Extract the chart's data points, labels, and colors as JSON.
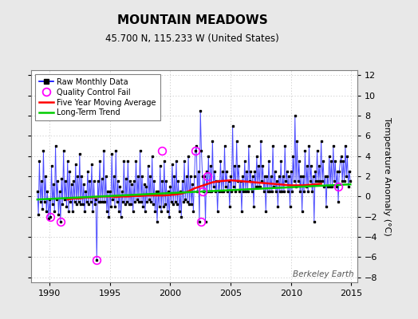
{
  "title": "MOUNTAIN MEADOWS",
  "subtitle": "45.700 N, 115.233 W (United States)",
  "ylabel": "Temperature Anomaly (°C)",
  "watermark": "Berkeley Earth",
  "xlim": [
    1988.5,
    2015.5
  ],
  "ylim": [
    -8.5,
    12.5
  ],
  "yticks": [
    -8,
    -6,
    -4,
    -2,
    0,
    2,
    4,
    6,
    8,
    10,
    12
  ],
  "xticks": [
    1990,
    1995,
    2000,
    2005,
    2010,
    2015
  ],
  "background_color": "#e8e8e8",
  "plot_bg_color": "#ffffff",
  "grid_color": "#c0c0c0",
  "raw_line_color": "#0000ff",
  "raw_marker_color": "#000000",
  "qc_fail_color": "#ff00ff",
  "moving_avg_color": "#ff0000",
  "trend_color": "#00cc00",
  "raw_data": {
    "times": [
      1989.0,
      1989.083,
      1989.167,
      1989.25,
      1989.333,
      1989.417,
      1989.5,
      1989.583,
      1989.667,
      1989.75,
      1989.833,
      1989.917,
      1990.0,
      1990.083,
      1990.167,
      1990.25,
      1990.333,
      1990.417,
      1990.5,
      1990.583,
      1990.667,
      1990.75,
      1990.833,
      1990.917,
      1991.0,
      1991.083,
      1991.167,
      1991.25,
      1991.333,
      1991.417,
      1991.5,
      1991.583,
      1991.667,
      1991.75,
      1991.833,
      1991.917,
      1992.0,
      1992.083,
      1992.167,
      1992.25,
      1992.333,
      1992.417,
      1992.5,
      1992.583,
      1992.667,
      1992.75,
      1992.833,
      1992.917,
      1993.0,
      1993.083,
      1993.167,
      1993.25,
      1993.333,
      1993.417,
      1993.5,
      1993.583,
      1993.667,
      1993.75,
      1993.833,
      1993.917,
      1994.0,
      1994.083,
      1994.167,
      1994.25,
      1994.333,
      1994.417,
      1994.5,
      1994.583,
      1994.667,
      1994.75,
      1994.833,
      1994.917,
      1995.0,
      1995.083,
      1995.167,
      1995.25,
      1995.333,
      1995.417,
      1995.5,
      1995.583,
      1995.667,
      1995.75,
      1995.833,
      1995.917,
      1996.0,
      1996.083,
      1996.167,
      1996.25,
      1996.333,
      1996.417,
      1996.5,
      1996.583,
      1996.667,
      1996.75,
      1996.833,
      1996.917,
      1997.0,
      1997.083,
      1997.167,
      1997.25,
      1997.333,
      1997.417,
      1997.5,
      1997.583,
      1997.667,
      1997.75,
      1997.833,
      1997.917,
      1998.0,
      1998.083,
      1998.167,
      1998.25,
      1998.333,
      1998.417,
      1998.5,
      1998.583,
      1998.667,
      1998.75,
      1998.833,
      1998.917,
      1999.0,
      1999.083,
      1999.167,
      1999.25,
      1999.333,
      1999.417,
      1999.5,
      1999.583,
      1999.667,
      1999.75,
      1999.833,
      1999.917,
      2000.0,
      2000.083,
      2000.167,
      2000.25,
      2000.333,
      2000.417,
      2000.5,
      2000.583,
      2000.667,
      2000.75,
      2000.833,
      2000.917,
      2001.0,
      2001.083,
      2001.167,
      2001.25,
      2001.333,
      2001.417,
      2001.5,
      2001.583,
      2001.667,
      2001.75,
      2001.833,
      2001.917,
      2002.0,
      2002.083,
      2002.167,
      2002.25,
      2002.333,
      2002.417,
      2002.5,
      2002.583,
      2002.667,
      2002.75,
      2002.833,
      2002.917,
      2003.0,
      2003.083,
      2003.167,
      2003.25,
      2003.333,
      2003.417,
      2003.5,
      2003.583,
      2003.667,
      2003.75,
      2003.833,
      2003.917,
      2004.0,
      2004.083,
      2004.167,
      2004.25,
      2004.333,
      2004.417,
      2004.5,
      2004.583,
      2004.667,
      2004.75,
      2004.833,
      2004.917,
      2005.0,
      2005.083,
      2005.167,
      2005.25,
      2005.333,
      2005.417,
      2005.5,
      2005.583,
      2005.667,
      2005.75,
      2005.833,
      2005.917,
      2006.0,
      2006.083,
      2006.167,
      2006.25,
      2006.333,
      2006.417,
      2006.5,
      2006.583,
      2006.667,
      2006.75,
      2006.833,
      2006.917,
      2007.0,
      2007.083,
      2007.167,
      2007.25,
      2007.333,
      2007.417,
      2007.5,
      2007.583,
      2007.667,
      2007.75,
      2007.833,
      2007.917,
      2008.0,
      2008.083,
      2008.167,
      2008.25,
      2008.333,
      2008.417,
      2008.5,
      2008.583,
      2008.667,
      2008.75,
      2008.833,
      2008.917,
      2009.0,
      2009.083,
      2009.167,
      2009.25,
      2009.333,
      2009.417,
      2009.5,
      2009.583,
      2009.667,
      2009.75,
      2009.833,
      2009.917,
      2010.0,
      2010.083,
      2010.167,
      2010.25,
      2010.333,
      2010.417,
      2010.5,
      2010.583,
      2010.667,
      2010.75,
      2010.833,
      2010.917,
      2011.0,
      2011.083,
      2011.167,
      2011.25,
      2011.333,
      2011.417,
      2011.5,
      2011.583,
      2011.667,
      2011.75,
      2011.833,
      2011.917,
      2012.0,
      2012.083,
      2012.167,
      2012.25,
      2012.333,
      2012.417,
      2012.5,
      2012.583,
      2012.667,
      2012.75,
      2012.833,
      2012.917,
      2013.0,
      2013.083,
      2013.167,
      2013.25,
      2013.333,
      2013.417,
      2013.5,
      2013.583,
      2013.667,
      2013.75,
      2013.833,
      2013.917,
      2014.0,
      2014.083,
      2014.167,
      2014.25,
      2014.333,
      2014.417,
      2014.5,
      2014.583,
      2014.667,
      2014.75,
      2014.833,
      2014.917
    ],
    "values": [
      0.5,
      -1.8,
      3.5,
      -0.5,
      1.5,
      -1.2,
      4.5,
      -0.5,
      2.0,
      -1.5,
      0.5,
      -2.2,
      -0.3,
      -2.0,
      3.0,
      -0.8,
      1.2,
      -1.5,
      5.0,
      -0.3,
      1.5,
      -1.8,
      0.5,
      -2.5,
      1.8,
      -0.8,
      4.5,
      -0.3,
      1.5,
      -1.0,
      3.5,
      -1.5,
      2.5,
      -0.5,
      1.2,
      -1.5,
      1.5,
      -0.5,
      3.2,
      -0.8,
      2.0,
      -0.5,
      4.2,
      -0.8,
      2.0,
      -0.8,
      1.2,
      -1.5,
      0.5,
      -0.5,
      2.5,
      -0.8,
      1.5,
      -0.5,
      3.2,
      -1.5,
      1.5,
      -0.8,
      -0.3,
      -6.3,
      1.5,
      -0.5,
      3.5,
      -0.5,
      1.8,
      -0.5,
      4.5,
      -0.5,
      2.0,
      -1.5,
      0.5,
      -2.0,
      0.5,
      -1.0,
      4.2,
      -0.3,
      2.0,
      -1.0,
      4.5,
      -0.5,
      1.5,
      -1.5,
      1.0,
      -2.0,
      0.5,
      -0.5,
      3.5,
      -0.8,
      1.8,
      -0.5,
      3.5,
      -0.8,
      1.5,
      -0.8,
      1.2,
      -1.5,
      1.5,
      -0.5,
      3.5,
      -0.3,
      2.0,
      -0.5,
      4.5,
      -0.5,
      2.0,
      -1.0,
      1.2,
      -1.5,
      1.0,
      -0.5,
      3.0,
      -0.3,
      2.0,
      -0.5,
      4.0,
      -0.8,
      1.5,
      -1.5,
      0.5,
      -2.5,
      0.5,
      -1.0,
      3.0,
      -1.5,
      1.5,
      -1.0,
      3.5,
      -0.8,
      1.5,
      -1.5,
      0.5,
      -2.0,
      1.0,
      -0.5,
      3.2,
      -0.8,
      2.0,
      -0.5,
      3.5,
      -0.8,
      1.5,
      -1.5,
      0.5,
      -2.0,
      1.5,
      -0.5,
      3.5,
      -0.3,
      2.0,
      -0.5,
      4.0,
      -0.8,
      2.0,
      -0.8,
      1.2,
      -1.5,
      2.0,
      4.5,
      5.0,
      0.5,
      2.5,
      -2.5,
      8.5,
      4.5,
      2.0,
      0.5,
      2.0,
      -2.5,
      2.5,
      0.5,
      4.0,
      0.5,
      3.0,
      0.5,
      5.5,
      1.0,
      2.5,
      0.5,
      1.5,
      -1.5,
      1.5,
      0.5,
      3.5,
      0.5,
      2.5,
      0.5,
      5.0,
      1.0,
      2.5,
      0.5,
      1.5,
      -1.0,
      2.0,
      0.5,
      7.0,
      1.0,
      3.0,
      0.5,
      5.5,
      1.5,
      3.0,
      0.5,
      1.5,
      -1.5,
      2.0,
      0.5,
      3.5,
      0.5,
      2.5,
      0.5,
      5.0,
      1.5,
      2.5,
      0.5,
      2.0,
      -1.0,
      2.5,
      1.0,
      4.0,
      1.0,
      3.0,
      1.0,
      5.5,
      1.5,
      3.0,
      0.5,
      2.0,
      -1.5,
      2.0,
      0.5,
      3.5,
      0.5,
      2.0,
      0.5,
      5.0,
      1.0,
      2.5,
      0.5,
      1.5,
      -1.0,
      2.0,
      0.5,
      3.5,
      0.5,
      2.0,
      0.5,
      5.0,
      1.5,
      2.5,
      0.5,
      2.0,
      -1.0,
      2.5,
      0.5,
      4.0,
      1.5,
      8.0,
      1.0,
      5.5,
      1.5,
      3.5,
      0.5,
      2.0,
      -1.5,
      2.0,
      0.5,
      4.5,
      1.0,
      3.0,
      0.5,
      5.0,
      1.5,
      3.0,
      0.5,
      2.0,
      -2.5,
      2.5,
      1.5,
      4.5,
      1.5,
      3.0,
      1.5,
      5.5,
      1.5,
      3.5,
      1.0,
      2.0,
      -1.0,
      2.0,
      1.0,
      4.0,
      1.0,
      3.5,
      1.0,
      5.0,
      1.5,
      3.5,
      1.0,
      2.5,
      -0.5,
      2.5,
      3.5,
      4.0,
      1.5,
      3.5,
      1.5,
      5.0,
      2.0,
      4.0,
      1.0,
      2.5,
      1.5
    ]
  },
  "qc_fail_times": [
    1990.083,
    1990.917,
    1993.917,
    1999.333,
    2002.083,
    2002.583,
    2002.667,
    2003.083,
    2013.917
  ],
  "qc_fail_values": [
    -2.0,
    -2.5,
    -6.3,
    4.5,
    4.5,
    -2.5,
    0.5,
    2.0,
    1.0
  ],
  "moving_avg_times": [
    1991.5,
    1992.0,
    1992.5,
    1993.0,
    1993.5,
    1994.0,
    1994.5,
    1995.0,
    1995.5,
    1996.0,
    1996.5,
    1997.0,
    1997.5,
    1998.0,
    1998.5,
    1999.0,
    1999.5,
    2000.0,
    2000.5,
    2001.0,
    2001.5,
    2002.0,
    2002.5,
    2003.0,
    2003.5,
    2004.0,
    2004.5,
    2005.0,
    2005.5,
    2006.0,
    2006.5,
    2007.0,
    2007.5,
    2008.0,
    2008.5,
    2009.0,
    2009.5,
    2010.0,
    2010.5,
    2011.0,
    2011.5,
    2012.0,
    2012.5
  ],
  "moving_avg_values": [
    -0.3,
    -0.2,
    -0.2,
    -0.1,
    -0.1,
    -0.05,
    0.0,
    0.0,
    -0.05,
    0.0,
    0.0,
    0.05,
    0.05,
    0.1,
    0.1,
    0.1,
    0.1,
    0.15,
    0.2,
    0.3,
    0.5,
    0.8,
    1.0,
    1.2,
    1.4,
    1.5,
    1.55,
    1.6,
    1.55,
    1.5,
    1.45,
    1.4,
    1.35,
    1.3,
    1.25,
    1.2,
    1.15,
    1.1,
    1.1,
    1.1,
    1.15,
    1.2,
    1.25
  ],
  "trend_times": [
    1989.0,
    2014.917
  ],
  "trend_values": [
    -0.3,
    1.2
  ]
}
